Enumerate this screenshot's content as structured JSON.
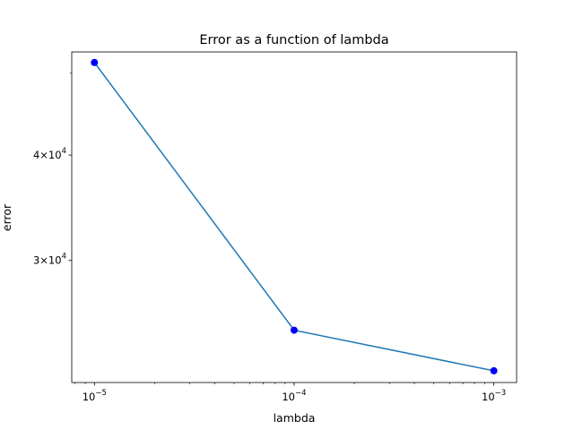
{
  "chart_data": {
    "type": "line",
    "title": "Error as a function of lambda",
    "xlabel": "lambda",
    "ylabel": "error",
    "xscale": "log",
    "yscale": "log",
    "xlim": [
      7.7e-06,
      0.0013
    ],
    "ylim": [
      21500,
      53000
    ],
    "x": [
      1e-05,
      0.0001,
      0.001
    ],
    "series": [
      {
        "values": [
          51500,
          24800,
          22200
        ],
        "line_color": "#1f77b4",
        "marker_color": "#0000ff"
      }
    ],
    "x_ticks": [
      {
        "value": 1e-05,
        "base": "10",
        "exp": "−5"
      },
      {
        "value": 0.0001,
        "base": "10",
        "exp": "−4"
      },
      {
        "value": 0.001,
        "base": "10",
        "exp": "−3"
      }
    ],
    "y_ticks": [
      {
        "value": 30000,
        "mantissa": "3",
        "base": "10",
        "exp": "4"
      },
      {
        "value": 40000,
        "mantissa": "4",
        "base": "10",
        "exp": "4"
      }
    ],
    "grid": false,
    "legend": "none"
  }
}
